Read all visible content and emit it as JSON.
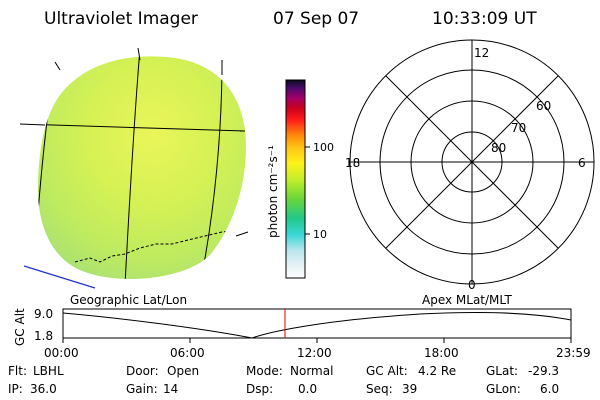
{
  "header": {
    "instrument": "Ultraviolet Imager",
    "date": "07 Sep 07",
    "time": "10:33:09 UT"
  },
  "colorbar": {
    "unit_label": "photon cm⁻²s⁻¹",
    "ticks": [
      "100",
      "10"
    ]
  },
  "polar_grid": {
    "hour_labels": {
      "top": "12",
      "left": "18",
      "right": "6",
      "bottom": "0"
    },
    "lat_labels": [
      "60",
      "70",
      "80"
    ]
  },
  "projection_labels": {
    "left": "Geographic Lat/Lon",
    "right": "Apex  MLat/MLT"
  },
  "altitude_plot": {
    "ylabel": "GC Alt",
    "y_ticks": [
      "9.0",
      "1.8"
    ],
    "x_ticks": [
      "00:00",
      "06:00",
      "12:00",
      "18:00",
      "23:59"
    ]
  },
  "status": {
    "filter": {
      "label": "Flt:",
      "value": "LBHL"
    },
    "door": {
      "label": "Door:",
      "value": "Open"
    },
    "mode": {
      "label": "Mode:",
      "value": "Normal"
    },
    "gc_alt": {
      "label": "GC Alt:",
      "value": "4.2 Re"
    },
    "glat": {
      "label": "GLat:",
      "value": "-29.3"
    },
    "ip": {
      "label": "IP:",
      "value": "36.0"
    },
    "gain": {
      "label": "Gain:",
      "value": "14"
    },
    "dsp": {
      "label": "Dsp:",
      "value": "0.0"
    },
    "seq": {
      "label": "Seq:",
      "value": "39"
    },
    "glon": {
      "label": "GLon:",
      "value": "6.0"
    }
  }
}
